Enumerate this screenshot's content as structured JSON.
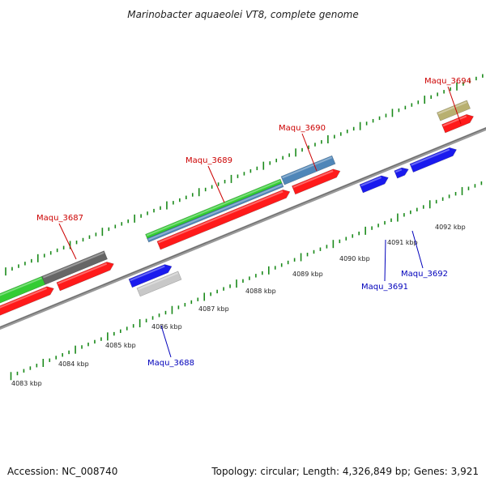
{
  "title": "Marinobacter aquaeolei VT8, complete genome",
  "footer": {
    "accession": "Accession: NC_008740",
    "summary": "Topology: circular; Length: 4,326,849 bp; Genes: 3,921"
  },
  "colors": {
    "backbone": "#888888",
    "tick": "#1a8a1a",
    "forward_label": "#cc0000",
    "reverse_label": "#0000bb",
    "red": "#ff1a1a",
    "green": "#33cc33",
    "steel": "#4f86b8",
    "gray": "#666666",
    "blue": "#1a1aee",
    "lightgray": "#c8c8c8",
    "khaki": "#b8b070"
  },
  "kbp_labels": [
    "4083 kbp",
    "4084 kbp",
    "4085 kbp",
    "4086 kbp",
    "4087 kbp",
    "4088 kbp",
    "4089 kbp",
    "4090 kbp",
    "4091 kbp",
    "4092 kbp"
  ],
  "gene_labels": [
    {
      "text": "Maqu_3687",
      "strand": "forward"
    },
    {
      "text": "Maqu_3689",
      "strand": "forward"
    },
    {
      "text": "Maqu_3690",
      "strand": "forward"
    },
    {
      "text": "Maqu_3694",
      "strand": "forward"
    },
    {
      "text": "Maqu_3688",
      "strand": "reverse"
    },
    {
      "text": "Maqu_3691",
      "strand": "reverse"
    },
    {
      "text": "Maqu_3692",
      "strand": "reverse"
    }
  ]
}
